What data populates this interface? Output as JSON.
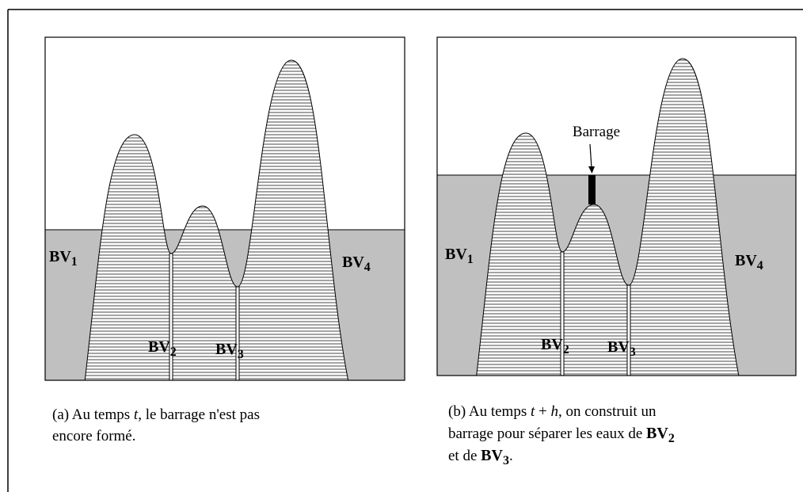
{
  "panels": [
    {
      "labels": [
        [
          "BV",
          "1"
        ],
        [
          "BV",
          "2"
        ],
        [
          "BV",
          "3"
        ],
        [
          "BV",
          "4"
        ]
      ],
      "caption": [
        [
          "(a) Au temps ",
          "t",
          ", le barrage n'est pas"
        ],
        [
          "encore formé."
        ]
      ]
    },
    {
      "labels": [
        [
          "BV",
          "1"
        ],
        [
          "BV",
          "2"
        ],
        [
          "BV",
          "3"
        ],
        [
          "BV",
          "4"
        ]
      ],
      "annotation": "Barrage",
      "caption": [
        [
          "(b) Au temps ",
          "t",
          " + ",
          "h",
          ", on construit un"
        ],
        [
          "barrage pour séparer les eaux de ",
          "BV",
          "2"
        ],
        [
          "et de ",
          "BV",
          "3",
          "."
        ]
      ]
    }
  ]
}
